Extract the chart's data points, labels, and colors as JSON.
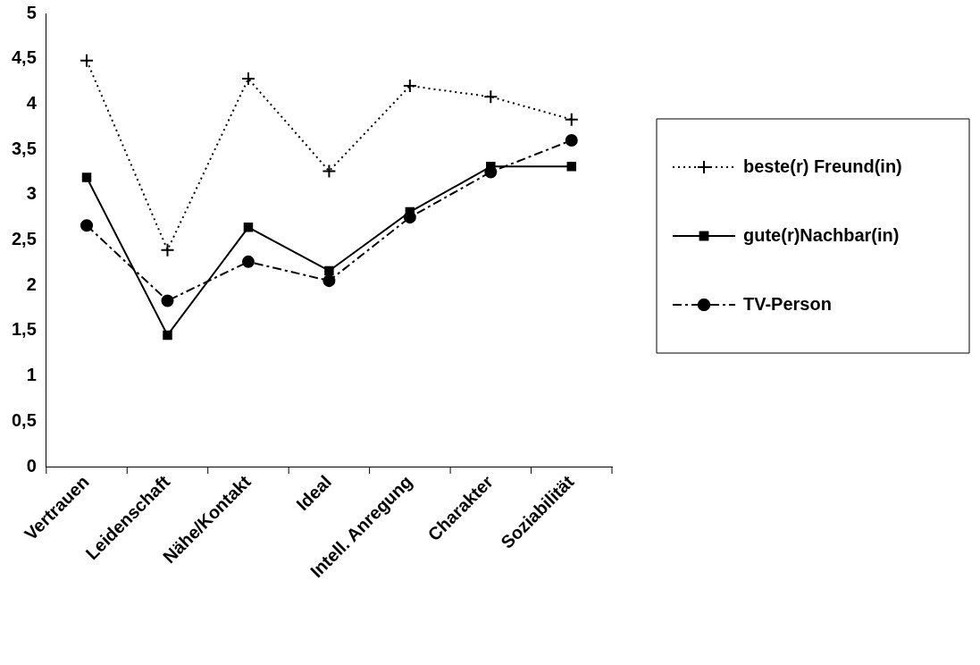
{
  "chart_data": {
    "type": "line",
    "categories": [
      "Vertrauen",
      "Leidenschaft",
      "Nähe/Kontakt",
      "Ideal",
      "Intell. Anregung",
      "Charakter",
      "Soziabilität"
    ],
    "series": [
      {
        "name": "beste(r) Freund(in)",
        "color": "#000000",
        "marker": "cross",
        "line_style": "dotted",
        "values": [
          4.48,
          2.39,
          4.28,
          3.26,
          4.2,
          4.08,
          3.83
        ]
      },
      {
        "name": "gute(r)Nachbar(in)",
        "color": "#000000",
        "marker": "square",
        "line_style": "solid",
        "values": [
          3.19,
          1.45,
          2.64,
          2.16,
          2.81,
          3.31,
          3.31
        ]
      },
      {
        "name": "TV-Person",
        "color": "#000000",
        "marker": "circle",
        "line_style": "dashed",
        "values": [
          2.66,
          1.83,
          2.26,
          2.05,
          2.75,
          3.25,
          3.6
        ]
      }
    ],
    "ylim": [
      0,
      5
    ],
    "yticks": [
      0,
      {
        "value": 0.5,
        "label": "0,5"
      },
      1,
      {
        "value": 1.5,
        "label": "1,5"
      },
      2,
      {
        "value": 2.5,
        "label": "2,5"
      },
      3,
      {
        "value": 3.5,
        "label": "3,5"
      },
      4,
      {
        "value": 4.5,
        "label": "4,5"
      },
      5
    ],
    "grid": false,
    "legend": "right"
  }
}
